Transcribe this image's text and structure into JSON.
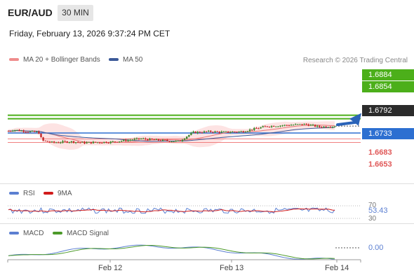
{
  "header": {
    "symbol": "EUR/AUD",
    "timeframe": "30 MIN",
    "datetime": "Friday, February 13, 2026 9:37:24 PM CET"
  },
  "legend": {
    "ma20_bb": "MA 20 + Bollinger Bands",
    "ma50": "MA 50",
    "copyright": "Research © 2026 Trading Central"
  },
  "price_levels": {
    "target2": "1.6884",
    "target1": "1.6854",
    "current": "1.6792",
    "pivot": "1.6733",
    "support1": "1.6683",
    "support2": "1.6653"
  },
  "rsi": {
    "label": "RSI",
    "ma_label": "9MA",
    "level_high": "70",
    "level_low": "30",
    "value": "53.43"
  },
  "macd": {
    "label": "MACD",
    "signal_label": "MACD Signal",
    "value": "0.00"
  },
  "x_axis": [
    "Feb 12",
    "Feb 13",
    "Feb 14"
  ],
  "colors": {
    "bull": "#3c8a2e",
    "bear": "#c62828",
    "ma20": "#e57373",
    "ma50": "#3b5998",
    "target": "#4caf1a",
    "pivot": "#2c6fd1",
    "support": "#e05858",
    "rsi": "#5b7fd1",
    "rsi_ma": "#d11b1b",
    "macd": "#5b7fd1",
    "macd_signal": "#4c9a2a"
  }
}
